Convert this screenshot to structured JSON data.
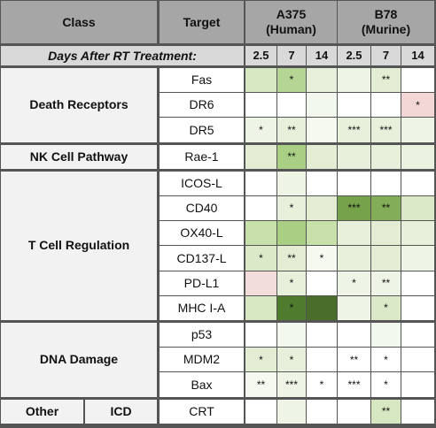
{
  "header": {
    "class": "Class",
    "target": "Target",
    "days_label": "Days After RT Treatment:",
    "models": [
      {
        "name": "A375",
        "origin": "(Human)",
        "days": [
          "2.5",
          "7",
          "14"
        ]
      },
      {
        "name": "B78",
        "origin": "(Murine)",
        "days": [
          "2.5",
          "7",
          "14"
        ]
      }
    ]
  },
  "groups": [
    {
      "label": "Death Receptors",
      "rows": [
        {
          "target": "Fas",
          "cells": [
            {
              "fill": "#d6e7c1"
            },
            {
              "text": "*",
              "fill": "#b5d595"
            },
            {
              "fill": "#e6f0da"
            },
            {
              "fill": "#eef5e6"
            },
            {
              "text": "**",
              "fill": "#e2edd4"
            },
            {
              "fill": "#ffffff"
            }
          ]
        },
        {
          "target": "DR6",
          "cells": [
            {
              "fill": "#ffffff"
            },
            {
              "fill": "#ffffff"
            },
            {
              "fill": "#f3f8ee"
            },
            {
              "fill": "#ffffff"
            },
            {
              "fill": "#ffffff"
            },
            {
              "text": "*",
              "fill": "#f3d6d6"
            }
          ]
        },
        {
          "target": "DR5",
          "cells": [
            {
              "text": "*",
              "fill": "#eef5e6"
            },
            {
              "text": "**",
              "fill": "#e6f0da"
            },
            {
              "fill": "#f5f9f0"
            },
            {
              "text": "***",
              "fill": "#e6f0da"
            },
            {
              "text": "***",
              "fill": "#e6f0da"
            },
            {
              "fill": "#eef5e6"
            }
          ]
        }
      ]
    },
    {
      "label": "NK Cell Pathway",
      "rows": [
        {
          "target": "Rae-1",
          "cells": [
            {
              "fill": "#e2edd4"
            },
            {
              "text": "**",
              "fill": "#a9cf85"
            },
            {
              "fill": "#e2edd4"
            },
            {
              "fill": "#e6f0da"
            },
            {
              "fill": "#e6f0da"
            },
            {
              "fill": "#eaf2e0"
            }
          ]
        }
      ]
    },
    {
      "label": "T Cell Regulation",
      "rows": [
        {
          "target": "ICOS-L",
          "cells": [
            {
              "fill": "#ffffff"
            },
            {
              "fill": "#eef5e6"
            },
            {
              "fill": "#ffffff"
            },
            {
              "fill": "#ffffff"
            },
            {
              "fill": "#ffffff"
            },
            {
              "fill": "#ffffff"
            }
          ]
        },
        {
          "target": "CD40",
          "cells": [
            {
              "fill": "#ffffff"
            },
            {
              "text": "*",
              "fill": "#e6f0da"
            },
            {
              "fill": "#e2edd4"
            },
            {
              "text": "***",
              "fill": "#76a24c"
            },
            {
              "text": "**",
              "fill": "#83ad58"
            },
            {
              "fill": "#dbe9c8"
            }
          ]
        },
        {
          "target": "OX40-L",
          "cells": [
            {
              "fill": "#c8e0aa"
            },
            {
              "fill": "#a9cf85"
            },
            {
              "fill": "#c8e0aa"
            },
            {
              "fill": "#e6f0da"
            },
            {
              "fill": "#e2edd4"
            },
            {
              "fill": "#e6f0da"
            }
          ]
        },
        {
          "target": "CD137-L",
          "cells": [
            {
              "text": "*",
              "fill": "#dbe9c8"
            },
            {
              "text": "**",
              "fill": "#e2edd4"
            },
            {
              "text": "*",
              "fill": "#f5f9f0"
            },
            {
              "fill": "#e6f0da"
            },
            {
              "fill": "#e2edd4"
            },
            {
              "fill": "#eef5e6"
            }
          ]
        },
        {
          "target": "PD-L1",
          "cells": [
            {
              "fill": "#f2dcdc"
            },
            {
              "text": "*",
              "fill": "#e6f0da"
            },
            {
              "fill": "#ffffff"
            },
            {
              "text": "*",
              "fill": "#eef5e6"
            },
            {
              "text": "**",
              "fill": "#eef5e6"
            },
            {
              "fill": "#ffffff"
            }
          ]
        },
        {
          "target": "MHC I-A",
          "cells": [
            {
              "fill": "#d6e7c1"
            },
            {
              "text": "*",
              "fill": "#4f7b2f"
            },
            {
              "fill": "#4a6e2a"
            },
            {
              "fill": "#eef5e6"
            },
            {
              "text": "*",
              "fill": "#dbe9c8"
            },
            {
              "fill": "#ffffff"
            }
          ]
        }
      ]
    },
    {
      "label": "DNA Damage",
      "rows": [
        {
          "target": "p53",
          "cells": [
            {
              "fill": "#ffffff"
            },
            {
              "fill": "#f3f8ee"
            },
            {
              "fill": "#ffffff"
            },
            {
              "fill": "#ffffff"
            },
            {
              "fill": "#f3f8ee"
            },
            {
              "fill": "#ffffff"
            }
          ]
        },
        {
          "target": "MDM2",
          "cells": [
            {
              "text": "*",
              "fill": "#e2edd4"
            },
            {
              "text": "*",
              "fill": "#e6f0da"
            },
            {
              "fill": "#ffffff"
            },
            {
              "text": "**",
              "fill": "#ffffff"
            },
            {
              "text": "*",
              "fill": "#ffffff"
            },
            {
              "fill": "#ffffff"
            }
          ]
        },
        {
          "target": "Bax",
          "cells": [
            {
              "text": "**",
              "fill": "#f5f9f0"
            },
            {
              "text": "***",
              "fill": "#eef5e6"
            },
            {
              "text": "*",
              "fill": "#ffffff"
            },
            {
              "text": "***",
              "fill": "#ffffff"
            },
            {
              "text": "*",
              "fill": "#ffffff"
            },
            {
              "fill": "#ffffff"
            }
          ]
        }
      ]
    },
    {
      "label": "Other",
      "sublabel": "ICD",
      "rows": [
        {
          "target": "CRT",
          "cells": [
            {
              "fill": "#ffffff"
            },
            {
              "fill": "#eef5e6"
            },
            {
              "fill": "#ffffff"
            },
            {
              "fill": "#ffffff"
            },
            {
              "text": "**",
              "fill": "#d6e7c1"
            },
            {
              "fill": "#ffffff"
            }
          ]
        }
      ]
    }
  ]
}
